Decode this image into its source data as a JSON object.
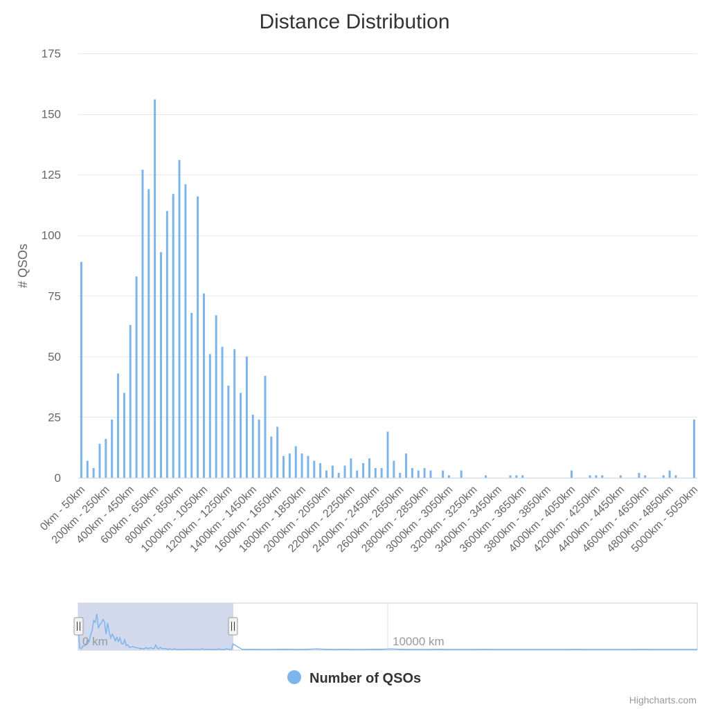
{
  "colors": {
    "bar": "#7cb5ec",
    "grid": "#e6e6e6",
    "nav_mask": "#cdd5ea",
    "nav_outline": "#cccccc",
    "text": "#666666"
  },
  "navigator": {
    "labels": [
      "0 km",
      "10000 km"
    ],
    "window_fraction": [
      0,
      0.25
    ]
  },
  "credits": "Highcharts.com",
  "chart_data": {
    "type": "bar",
    "title": "Distance Distribution",
    "ylabel": "# QSOs",
    "xlabel": "",
    "ylim": [
      0,
      175
    ],
    "yticks": [
      0,
      25,
      50,
      75,
      100,
      125,
      150,
      175
    ],
    "grid": true,
    "legend": {
      "position": "bottom-center",
      "entries": [
        "Number of QSOs"
      ]
    },
    "categories": [
      "0km - 50km",
      "50km - 100km",
      "100km - 150km",
      "150km - 200km",
      "200km - 250km",
      "250km - 300km",
      "300km - 350km",
      "350km - 400km",
      "400km - 450km",
      "450km - 500km",
      "500km - 550km",
      "550km - 600km",
      "600km - 650km",
      "650km - 700km",
      "700km - 750km",
      "750km - 800km",
      "800km - 850km",
      "850km - 900km",
      "900km - 950km",
      "950km - 1000km",
      "1000km - 1050km",
      "1050km - 1100km",
      "1100km - 1150km",
      "1150km - 1200km",
      "1200km - 1250km",
      "1250km - 1300km",
      "1300km - 1350km",
      "1350km - 1400km",
      "1400km - 1450km",
      "1450km - 1500km",
      "1500km - 1550km",
      "1550km - 1600km",
      "1600km - 1650km",
      "1650km - 1700km",
      "1700km - 1750km",
      "1750km - 1800km",
      "1800km - 1850km",
      "1850km - 1900km",
      "1900km - 1950km",
      "1950km - 2000km",
      "2000km - 2050km",
      "2050km - 2100km",
      "2100km - 2150km",
      "2150km - 2200km",
      "2200km - 2250km",
      "2250km - 2300km",
      "2300km - 2350km",
      "2350km - 2400km",
      "2400km - 2450km",
      "2450km - 2500km",
      "2500km - 2550km",
      "2550km - 2600km",
      "2600km - 2650km",
      "2650km - 2700km",
      "2700km - 2750km",
      "2750km - 2800km",
      "2800km - 2850km",
      "2850km - 2900km",
      "2900km - 2950km",
      "2950km - 3000km",
      "3000km - 3050km",
      "3050km - 3100km",
      "3100km - 3150km",
      "3150km - 3200km",
      "3200km - 3250km",
      "3250km - 3300km",
      "3300km - 3350km",
      "3350km - 3400km",
      "3400km - 3450km",
      "3450km - 3500km",
      "3500km - 3550km",
      "3550km - 3600km",
      "3600km - 3650km",
      "3650km - 3700km",
      "3700km - 3750km",
      "3750km - 3800km",
      "3800km - 3850km",
      "3850km - 3900km",
      "3900km - 3950km",
      "3950km - 4000km",
      "4000km - 4050km",
      "4050km - 4100km",
      "4100km - 4150km",
      "4150km - 4200km",
      "4200km - 4250km",
      "4250km - 4300km",
      "4300km - 4350km",
      "4350km - 4400km",
      "4400km - 4450km",
      "4450km - 4500km",
      "4500km - 4550km",
      "4550km - 4600km",
      "4600km - 4650km",
      "4650km - 4700km",
      "4700km - 4750km",
      "4750km - 4800km",
      "4800km - 4850km",
      "4850km - 4900km",
      "4900km - 4950km",
      "4950km - 5000km",
      "5000km - 5050km"
    ],
    "visible_tick_every": 4,
    "series": [
      {
        "name": "Number of QSOs",
        "values": [
          89,
          7,
          4,
          14,
          16,
          24,
          43,
          35,
          63,
          83,
          127,
          119,
          156,
          93,
          110,
          117,
          131,
          121,
          68,
          116,
          76,
          51,
          67,
          54,
          38,
          53,
          35,
          50,
          26,
          24,
          42,
          17,
          21,
          9,
          10,
          13,
          10,
          9,
          7,
          6,
          3,
          5,
          2,
          5,
          8,
          3,
          6,
          8,
          4,
          4,
          19,
          7,
          2,
          10,
          4,
          3,
          4,
          3,
          0,
          3,
          1,
          0,
          3,
          0,
          0,
          0,
          1,
          0,
          0,
          0,
          1,
          1,
          1,
          0,
          0,
          0,
          0,
          0,
          0,
          0,
          3,
          0,
          0,
          1,
          1,
          1,
          0,
          0,
          1,
          0,
          0,
          2,
          1,
          0,
          0,
          1,
          3,
          1,
          0,
          0,
          24
        ]
      }
    ]
  }
}
